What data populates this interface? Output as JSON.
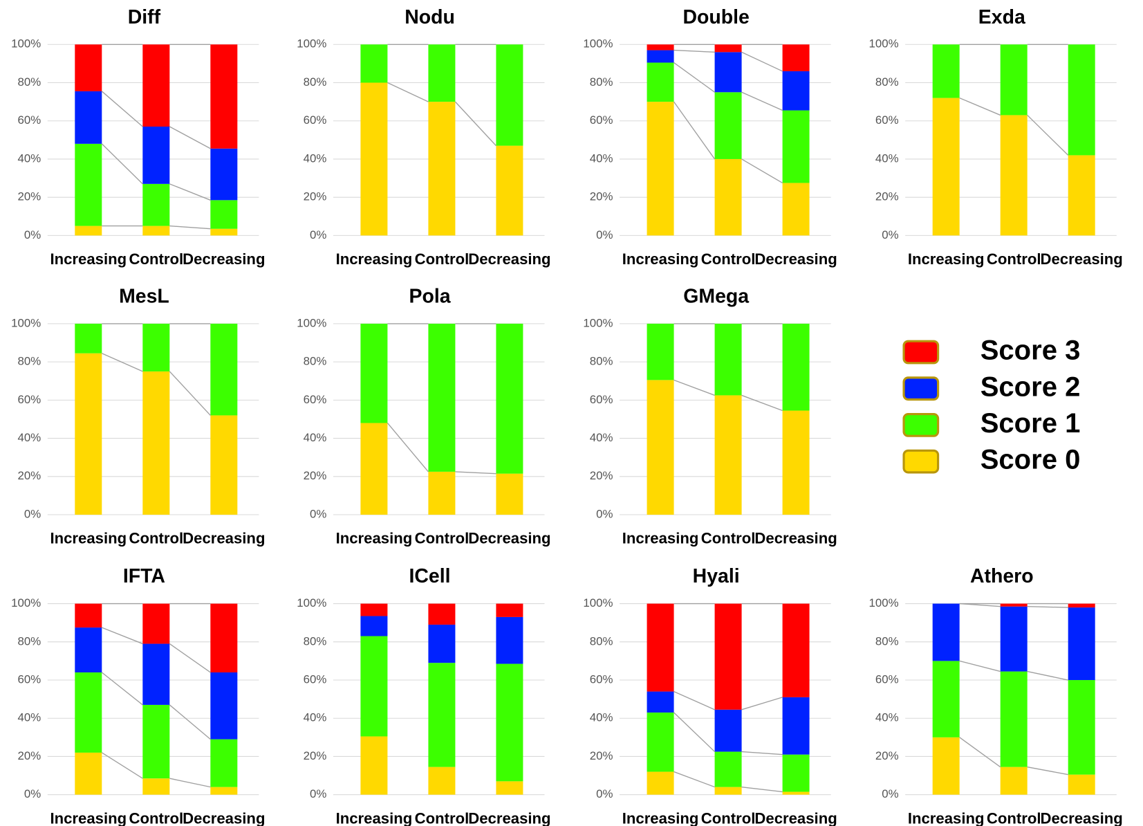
{
  "chart_data": [
    {
      "type": "bar",
      "title": "Diff",
      "categories": [
        "Increasing",
        "Control",
        "Decreasing"
      ],
      "ylim": [
        0,
        100
      ],
      "yticks": [
        {
          "value": 0,
          "label": "0%"
        },
        {
          "value": 20,
          "label": "20%"
        },
        {
          "value": 40,
          "label": "40%"
        },
        {
          "value": 60,
          "label": "60%"
        },
        {
          "value": 80,
          "label": "80%"
        },
        {
          "value": 100,
          "label": "100%"
        }
      ],
      "connectors": true,
      "series": [
        {
          "values": [
            5,
            5,
            3.5
          ]
        },
        {
          "values": [
            43,
            22,
            15
          ]
        },
        {
          "values": [
            27.5,
            30,
            27
          ]
        },
        {
          "values": [
            24.5,
            43,
            54.5
          ]
        }
      ]
    },
    {
      "type": "bar",
      "title": "Nodu",
      "categories": [
        "Increasing",
        "Control",
        "Decreasing"
      ],
      "ylim": [
        0,
        100
      ],
      "yticks": [
        {
          "value": 0,
          "label": "0%"
        },
        {
          "value": 20,
          "label": "20%"
        },
        {
          "value": 40,
          "label": "40%"
        },
        {
          "value": 60,
          "label": "60%"
        },
        {
          "value": 80,
          "label": "80%"
        },
        {
          "value": 100,
          "label": "100%"
        }
      ],
      "connectors": true,
      "series": [
        {
          "values": [
            80,
            70,
            47
          ]
        },
        {
          "values": [
            20,
            30,
            53
          ]
        }
      ]
    },
    {
      "type": "bar",
      "title": "Double",
      "categories": [
        "Increasing",
        "Control",
        "Decreasing"
      ],
      "ylim": [
        0,
        100
      ],
      "yticks": [
        {
          "value": 0,
          "label": "0%"
        },
        {
          "value": 20,
          "label": "20%"
        },
        {
          "value": 40,
          "label": "40%"
        },
        {
          "value": 60,
          "label": "60%"
        },
        {
          "value": 80,
          "label": "80%"
        },
        {
          "value": 100,
          "label": "100%"
        }
      ],
      "connectors": true,
      "series": [
        {
          "values": [
            70,
            40,
            27.5
          ]
        },
        {
          "values": [
            20.5,
            35,
            38
          ]
        },
        {
          "values": [
            6.5,
            21,
            20.5
          ]
        },
        {
          "values": [
            3,
            4,
            14
          ]
        }
      ]
    },
    {
      "type": "bar",
      "title": "Exda",
      "categories": [
        "Increasing",
        "Control",
        "Decreasing"
      ],
      "ylim": [
        0,
        100
      ],
      "yticks": [
        {
          "value": 0,
          "label": "0%"
        },
        {
          "value": 20,
          "label": "20%"
        },
        {
          "value": 40,
          "label": "40%"
        },
        {
          "value": 60,
          "label": "60%"
        },
        {
          "value": 80,
          "label": "80%"
        },
        {
          "value": 100,
          "label": "100%"
        }
      ],
      "connectors": true,
      "series": [
        {
          "values": [
            72,
            63,
            42
          ]
        },
        {
          "values": [
            28,
            37,
            58
          ]
        }
      ]
    },
    {
      "type": "bar",
      "title": "MesL",
      "categories": [
        "Increasing",
        "Control",
        "Decreasing"
      ],
      "ylim": [
        0,
        100
      ],
      "yticks": [
        {
          "value": 0,
          "label": "0%"
        },
        {
          "value": 20,
          "label": "20%"
        },
        {
          "value": 40,
          "label": "40%"
        },
        {
          "value": 60,
          "label": "60%"
        },
        {
          "value": 80,
          "label": "80%"
        },
        {
          "value": 100,
          "label": "100%"
        }
      ],
      "connectors": true,
      "series": [
        {
          "values": [
            84.5,
            75,
            52
          ]
        },
        {
          "values": [
            15.5,
            25,
            48
          ]
        }
      ]
    },
    {
      "type": "bar",
      "title": "Pola",
      "categories": [
        "Increasing",
        "Control",
        "Decreasing"
      ],
      "ylim": [
        0,
        100
      ],
      "yticks": [
        {
          "value": 0,
          "label": "0%"
        },
        {
          "value": 20,
          "label": "20%"
        },
        {
          "value": 40,
          "label": "40%"
        },
        {
          "value": 60,
          "label": "60%"
        },
        {
          "value": 80,
          "label": "80%"
        },
        {
          "value": 100,
          "label": "100%"
        }
      ],
      "connectors": true,
      "series": [
        {
          "values": [
            48,
            22.5,
            21.5
          ]
        },
        {
          "values": [
            52,
            77.5,
            78.5
          ]
        }
      ]
    },
    {
      "type": "bar",
      "title": "GMega",
      "categories": [
        "Increasing",
        "Control",
        "Decreasing"
      ],
      "ylim": [
        0,
        100
      ],
      "yticks": [
        {
          "value": 0,
          "label": "0%"
        },
        {
          "value": 20,
          "label": "20%"
        },
        {
          "value": 40,
          "label": "40%"
        },
        {
          "value": 60,
          "label": "60%"
        },
        {
          "value": 80,
          "label": "80%"
        },
        {
          "value": 100,
          "label": "100%"
        }
      ],
      "connectors": true,
      "series": [
        {
          "values": [
            70.5,
            62.5,
            54.5
          ]
        },
        {
          "values": [
            29.5,
            37.5,
            45.5
          ]
        }
      ]
    },
    {
      "type": "bar",
      "title": "IFTA",
      "categories": [
        "Increasing",
        "Control",
        "Decreasing"
      ],
      "ylim": [
        0,
        100
      ],
      "yticks": [
        {
          "value": 0,
          "label": "0%"
        },
        {
          "value": 20,
          "label": "20%"
        },
        {
          "value": 40,
          "label": "40%"
        },
        {
          "value": 60,
          "label": "60%"
        },
        {
          "value": 80,
          "label": "80%"
        },
        {
          "value": 100,
          "label": "100%"
        }
      ],
      "connectors": true,
      "series": [
        {
          "values": [
            22,
            8.5,
            4
          ]
        },
        {
          "values": [
            42,
            38.5,
            25
          ]
        },
        {
          "values": [
            23.5,
            32,
            35
          ]
        },
        {
          "values": [
            12.5,
            21,
            36
          ]
        }
      ]
    },
    {
      "type": "bar",
      "title": "ICell",
      "categories": [
        "Increasing",
        "Control",
        "Decreasing"
      ],
      "ylim": [
        0,
        100
      ],
      "yticks": [
        {
          "value": 0,
          "label": "0%"
        },
        {
          "value": 20,
          "label": "20%"
        },
        {
          "value": 40,
          "label": "40%"
        },
        {
          "value": 60,
          "label": "60%"
        },
        {
          "value": 80,
          "label": "80%"
        },
        {
          "value": 100,
          "label": "100%"
        }
      ],
      "connectors": false,
      "series": [
        {
          "values": [
            30.5,
            14.5,
            7
          ]
        },
        {
          "values": [
            52.5,
            54.5,
            61.5
          ]
        },
        {
          "values": [
            10.5,
            20,
            24.5
          ]
        },
        {
          "values": [
            6.5,
            11,
            7
          ]
        }
      ]
    },
    {
      "type": "bar",
      "title": "Hyali",
      "categories": [
        "Increasing",
        "Control",
        "Decreasing"
      ],
      "ylim": [
        0,
        100
      ],
      "yticks": [
        {
          "value": 0,
          "label": "0%"
        },
        {
          "value": 20,
          "label": "20%"
        },
        {
          "value": 40,
          "label": "40%"
        },
        {
          "value": 60,
          "label": "60%"
        },
        {
          "value": 80,
          "label": "80%"
        },
        {
          "value": 100,
          "label": "100%"
        }
      ],
      "connectors": true,
      "series": [
        {
          "values": [
            12,
            4,
            1.5
          ]
        },
        {
          "values": [
            31,
            18.5,
            19.5
          ]
        },
        {
          "values": [
            11,
            22,
            30
          ]
        },
        {
          "values": [
            46,
            55.5,
            49
          ]
        }
      ]
    },
    {
      "type": "bar",
      "title": "Athero",
      "categories": [
        "Increasing",
        "Control",
        "Decreasing"
      ],
      "ylim": [
        0,
        100
      ],
      "yticks": [
        {
          "value": 0,
          "label": "0%"
        },
        {
          "value": 20,
          "label": "20%"
        },
        {
          "value": 40,
          "label": "40%"
        },
        {
          "value": 60,
          "label": "60%"
        },
        {
          "value": 80,
          "label": "80%"
        },
        {
          "value": 100,
          "label": "100%"
        }
      ],
      "connectors": true,
      "series": [
        {
          "values": [
            30,
            14.5,
            10.5
          ]
        },
        {
          "values": [
            40,
            50,
            49.5
          ]
        },
        {
          "values": [
            30,
            34,
            38
          ]
        },
        {
          "values": [
            0,
            1.5,
            2
          ]
        }
      ]
    }
  ],
  "legend": {
    "series": [
      {
        "name": "Score 0",
        "color": "#ffd900"
      },
      {
        "name": "Score 1",
        "color": "#3cff00"
      },
      {
        "name": "Score 2",
        "color": "#0022ff"
      },
      {
        "name": "Score 3",
        "color": "#ff0000"
      }
    ]
  }
}
